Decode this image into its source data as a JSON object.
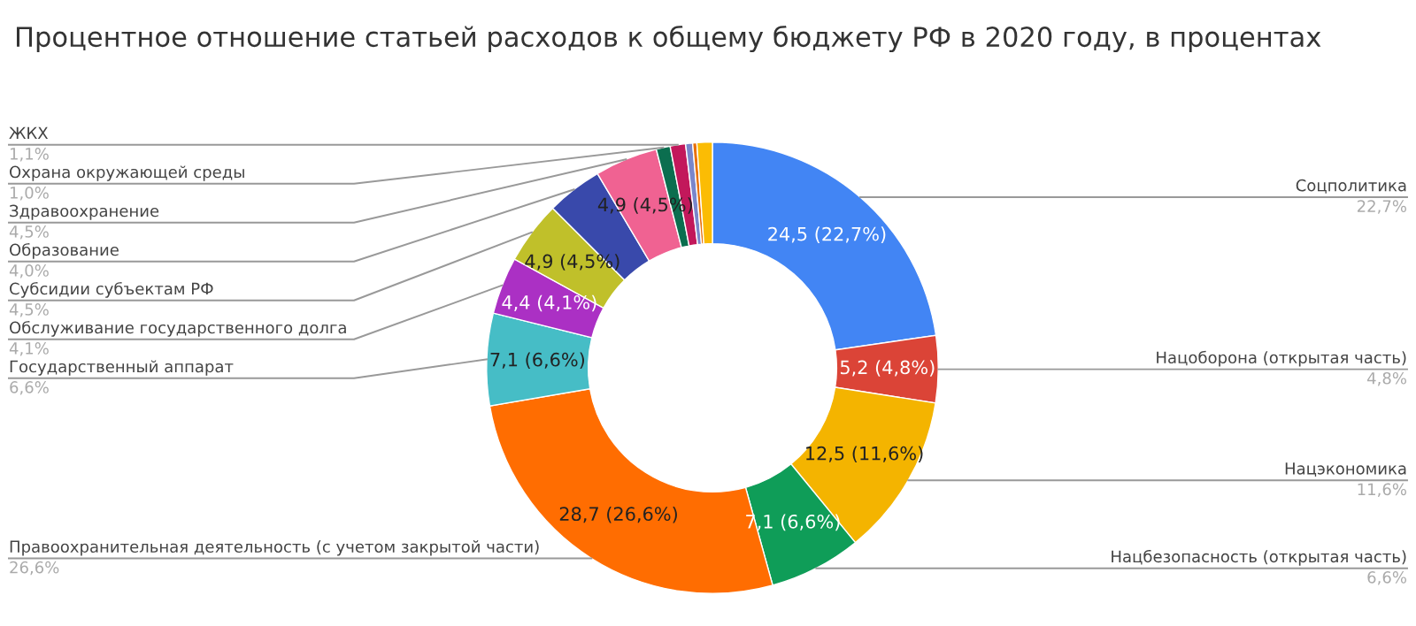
{
  "chart_data": {
    "type": "donut",
    "title": "Процентное отношение статьей расходов к общему бюджету РФ в 2020 году, в процентах",
    "categories": [
      "Соцполитика",
      "Нацоборона (открытая часть)",
      "Нацэкономика",
      "Нацбезопасность (открытая часть)",
      "Правоохранительная деятельность (с учетом закрытой части)",
      "Государственный аппарат",
      "Обслуживание государственного долга",
      "Субсидии субъектам РФ",
      "Образование",
      "Здравоохранение",
      "Охрана окружающей среды",
      "ЖКХ",
      null,
      null,
      null
    ],
    "values": [
      22.7,
      4.8,
      11.6,
      6.6,
      26.6,
      6.6,
      4.1,
      4.5,
      4.0,
      4.5,
      1.0,
      1.1,
      0.5,
      0.3,
      1.1
    ],
    "colors": [
      "#4285f4",
      "#db4437",
      "#f4b400",
      "#0f9d58",
      "#ff6d01",
      "#46bdc6",
      "#ab30c4",
      "#c0c02a",
      "#3949ab",
      "#f06292",
      "#0b6e4f",
      "#c2185b",
      "#7986cb",
      "#e8710a",
      "#fbbc04"
    ],
    "value_labels": [
      "24,5 (22,7%)",
      "5,2 (4,8%)",
      "12,5 (11,6%)",
      "7,1 (6,6%)",
      "28,7 (26,6%)",
      "7,1 (6,6%)",
      "4,4 (4,1%)",
      "4,9 (4,5%)",
      null,
      "4,9 (4,5%)",
      null,
      null,
      null,
      null,
      null
    ],
    "annotations": [
      "22,7%",
      "4,8%",
      "11,6%",
      "6,6%",
      "26,6%",
      "6,6%",
      "4,1%",
      "4,5%",
      "4,0%",
      "4,5%",
      "1,0%",
      "1,1%",
      null,
      null,
      null
    ],
    "legend": false
  }
}
